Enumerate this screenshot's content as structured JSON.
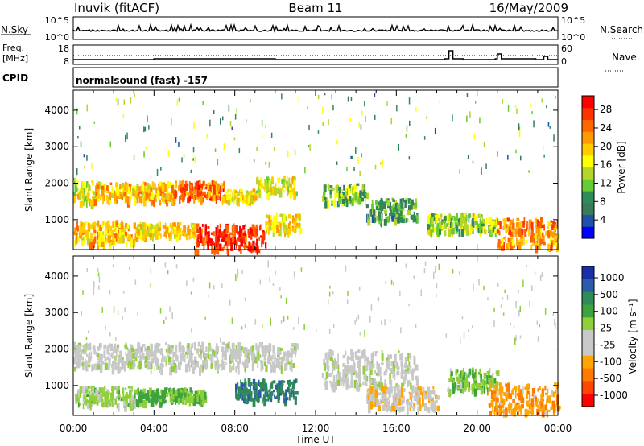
{
  "header": {
    "station": "Inuvik (fitACF)",
    "beam": "Beam 11",
    "date": "16/May/2009"
  },
  "panels": {
    "nsky_label": "N.Sky",
    "nsky_ticks": [
      "10^5",
      "10^0"
    ],
    "nsearch_label": "N.Search",
    "freq_label_1": "Freq.",
    "freq_label_2": "[MHz]",
    "freq_ticks": [
      "18",
      "8"
    ],
    "nave_label": "Nave",
    "nave_ticks": [
      "60",
      "0"
    ],
    "cpid_label": "CPID",
    "cpid_value": "normalsound (fast) -157"
  },
  "colors": {
    "power_scale": [
      "#0000ff",
      "#1f4fa8",
      "#3a7a5c",
      "#2e8b57",
      "#66cc33",
      "#b4d52a",
      "#ffff00",
      "#ffcc00",
      "#ff9900",
      "#ff6600",
      "#ff3300",
      "#ff0000"
    ],
    "velocity_scale": [
      "#1a2ea8",
      "#2a5caa",
      "#2e8b57",
      "#3da33d",
      "#8fcf3a",
      "#c8c8c8",
      "#c8c8c8",
      "#ffa500",
      "#ff7a00",
      "#ff4500",
      "#ff0000"
    ],
    "ground_scatter": "#b0b0b0"
  },
  "chart_data": [
    {
      "type": "heatmap",
      "name": "power",
      "xlabel": "",
      "ylabel": "Slant Range [km]",
      "xlim_hours": [
        0,
        24
      ],
      "ylim_km": [
        180,
        4550
      ],
      "yticks": [
        "1000",
        "2000",
        "3000",
        "4000"
      ],
      "yticks_values": [
        1000,
        2000,
        3000,
        4000
      ],
      "colorbar": {
        "label": "Power [dB]",
        "ticks": [
          "4",
          "8",
          "12",
          "16",
          "20",
          "24",
          "28"
        ],
        "range": [
          0,
          31
        ]
      },
      "features": [
        {
          "t": [
            0,
            1
          ],
          "r": [
            1500,
            2150
          ],
          "level": 16
        },
        {
          "t": [
            1,
            5
          ],
          "r": [
            1550,
            2050
          ],
          "level": 20
        },
        {
          "t": [
            5,
            7.5
          ],
          "r": [
            1600,
            2100
          ],
          "level": 24
        },
        {
          "t": [
            7.5,
            9
          ],
          "r": [
            1550,
            1850
          ],
          "level": 18
        },
        {
          "t": [
            9,
            11
          ],
          "r": [
            1750,
            2200
          ],
          "level": 16
        },
        {
          "t": [
            12.3,
            14.5
          ],
          "r": [
            1500,
            2000
          ],
          "level": 12
        },
        {
          "t": [
            14.5,
            17
          ],
          "r": [
            1000,
            1600
          ],
          "level": 10
        },
        {
          "t": [
            0,
            3
          ],
          "r": [
            400,
            1000
          ],
          "level": 20
        },
        {
          "t": [
            3,
            6
          ],
          "r": [
            600,
            950
          ],
          "level": 18
        },
        {
          "t": [
            6,
            9.5
          ],
          "r": [
            180,
            900
          ],
          "level": 28
        },
        {
          "t": [
            9.5,
            11.2
          ],
          "r": [
            700,
            1200
          ],
          "level": 18
        },
        {
          "t": [
            17.5,
            21
          ],
          "r": [
            700,
            1200
          ],
          "level": 14
        },
        {
          "t": [
            21,
            24
          ],
          "r": [
            300,
            1100
          ],
          "level": 22
        }
      ]
    },
    {
      "type": "heatmap",
      "name": "velocity",
      "xlabel": "Time UT",
      "ylabel": "Slant Range [km]",
      "xlim_hours": [
        0,
        24
      ],
      "ylim_km": [
        180,
        4550
      ],
      "xticks": [
        "00:00",
        "04:00",
        "08:00",
        "12:00",
        "16:00",
        "20:00",
        "00:00"
      ],
      "xticks_hours": [
        0,
        4,
        8,
        12,
        16,
        20,
        24
      ],
      "yticks": [
        "1000",
        "2000",
        "3000",
        "4000"
      ],
      "yticks_values": [
        1000,
        2000,
        3000,
        4000
      ],
      "colorbar": {
        "label": "Velocity [m s⁻¹]",
        "ticks": [
          "1000",
          "500",
          "100",
          "25",
          "-25",
          "-100",
          "-500",
          "-1000"
        ]
      },
      "features": [
        {
          "t": [
            0,
            11
          ],
          "r": [
            1500,
            2200
          ],
          "velocity": 0
        },
        {
          "t": [
            12.3,
            17
          ],
          "r": [
            1000,
            2000
          ],
          "velocity": 0
        },
        {
          "t": [
            0,
            3
          ],
          "r": [
            500,
            1000
          ],
          "velocity": 150
        },
        {
          "t": [
            3,
            6.5
          ],
          "r": [
            600,
            950
          ],
          "velocity": 300
        },
        {
          "t": [
            8,
            11
          ],
          "r": [
            600,
            1200
          ],
          "velocity": 600
        },
        {
          "t": [
            14.5,
            18
          ],
          "r": [
            400,
            1000
          ],
          "velocity": -200
        },
        {
          "t": [
            18.5,
            21
          ],
          "r": [
            900,
            1500
          ],
          "velocity": 200
        },
        {
          "t": [
            20.5,
            24
          ],
          "r": [
            300,
            1100
          ],
          "velocity": -400
        }
      ]
    }
  ]
}
